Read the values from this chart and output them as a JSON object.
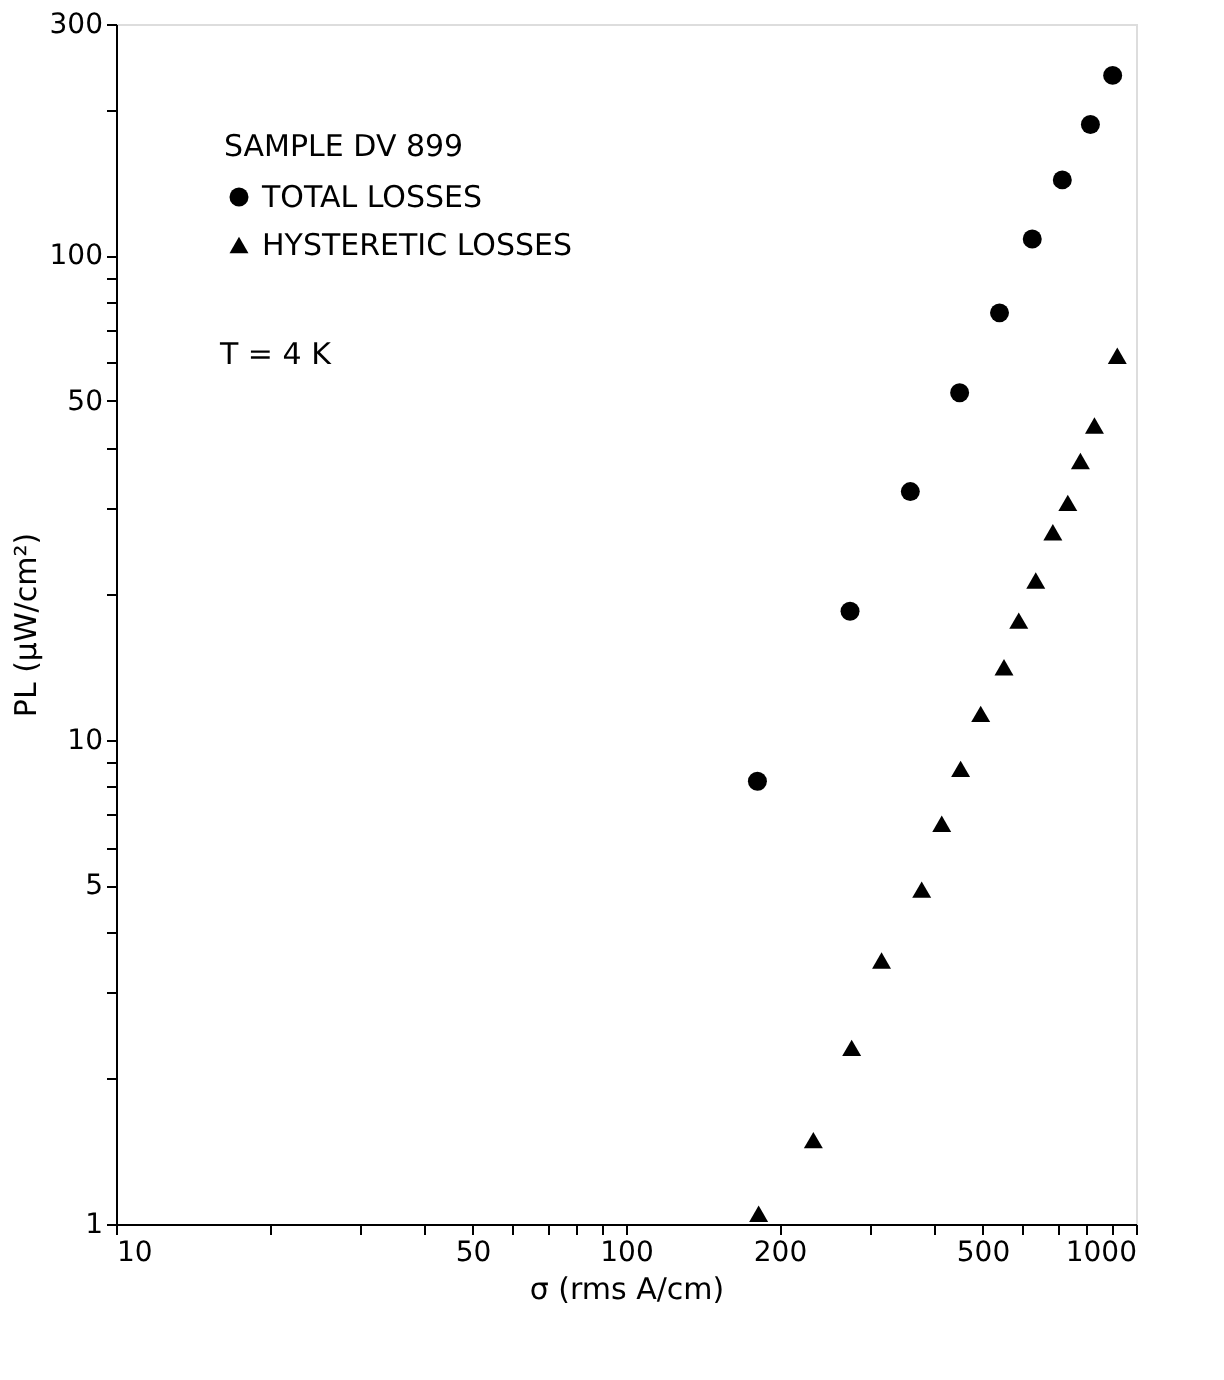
{
  "chart_data": {
    "type": "scatter",
    "xlabel": "σ (rms A/cm)",
    "ylabel": "PL (μW/cm²)",
    "legend_title": "SAMPLE DV 899",
    "annotations": [
      "T = 4 K"
    ],
    "log": "xy",
    "legend": "top left",
    "grid": false,
    "xlim": [
      10,
      1000
    ],
    "ylim": [
      1,
      300
    ],
    "xticks": [
      10,
      {
        "value": 20,
        "label": null
      },
      {
        "value": 30,
        "label": null
      },
      {
        "value": 40,
        "label": null
      },
      50,
      {
        "value": 60,
        "label": null
      },
      {
        "value": 70,
        "label": null
      },
      {
        "value": 80,
        "label": null
      },
      {
        "value": 90,
        "label": null
      },
      100,
      200,
      {
        "value": 300,
        "label": null
      },
      {
        "value": 400,
        "label": null
      },
      500,
      {
        "value": 600,
        "label": null
      },
      {
        "value": 700,
        "label": null
      },
      {
        "value": 800,
        "label": null
      },
      {
        "value": 900,
        "label": null
      },
      1000
    ],
    "yticks": [
      1,
      {
        "value": 2,
        "label": null
      },
      {
        "value": 3,
        "label": null
      },
      {
        "value": 4,
        "label": null
      },
      5,
      {
        "value": 6,
        "label": null
      },
      {
        "value": 7,
        "label": null
      },
      {
        "value": 8,
        "label": null
      },
      {
        "value": 9,
        "label": null
      },
      10,
      {
        "value": 20,
        "label": null
      },
      {
        "value": 30,
        "label": null
      },
      {
        "value": 40,
        "label": null
      },
      50,
      {
        "value": 60,
        "label": null
      },
      {
        "value": 70,
        "label": null
      },
      {
        "value": 80,
        "label": null
      },
      {
        "value": 90,
        "label": null
      },
      100,
      {
        "value": 200,
        "label": null
      },
      300
    ],
    "series": [
      {
        "name": "TOTAL LOSSES",
        "color": "#000000",
        "marker": "circle",
        "x": [
          181,
          275,
          361,
          451,
          540,
          626,
          717,
          814,
          900
        ],
        "values": [
          8.2,
          18.4,
          32.5,
          52,
          76,
          108,
          143,
          186,
          235
        ]
      },
      {
        "name": "HYSTERETIC LOSSES",
        "color": "#000000",
        "marker": "triangle",
        "x": [
          182,
          233,
          277,
          317,
          380,
          416,
          453,
          496,
          551,
          589,
          636,
          687,
          735,
          778,
          829,
          919
        ],
        "values": [
          1.05,
          1.49,
          2.31,
          3.5,
          4.9,
          6.7,
          8.7,
          11.3,
          14.1,
          17.6,
          21.3,
          26.8,
          30.8,
          37.6,
          44.5,
          62
        ]
      }
    ]
  }
}
